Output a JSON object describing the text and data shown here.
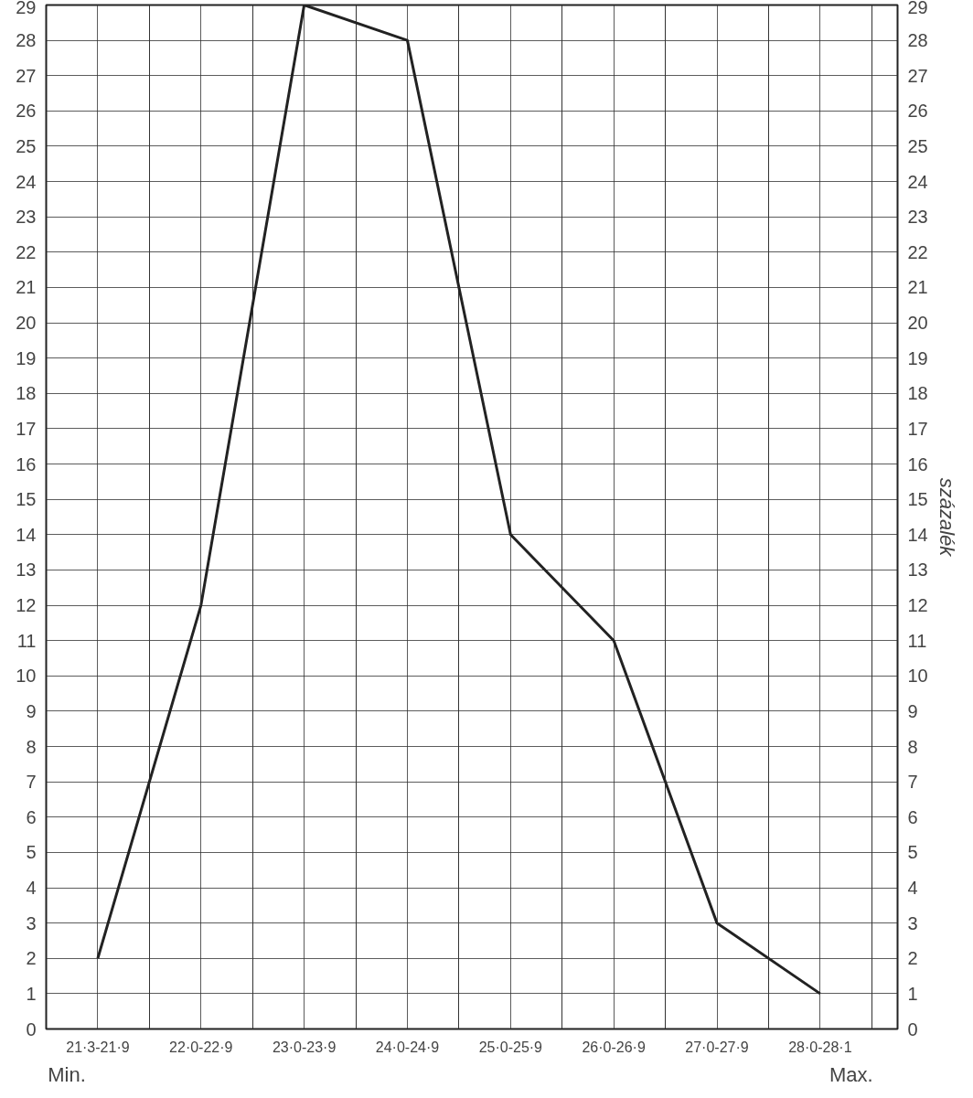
{
  "chart_data": {
    "type": "line",
    "categories": [
      "21·3-21·9",
      "22·0-22·9",
      "23·0-23·9",
      "24·0-24·9",
      "25·0-25·9",
      "26·0-26·9",
      "27·0-27·9",
      "28·0-28·1"
    ],
    "series": [
      {
        "color": "#222222",
        "values": [
          2,
          12,
          29,
          28,
          14,
          11,
          3,
          1
        ]
      }
    ],
    "ylim": [
      0,
      29
    ],
    "yticks": [
      0,
      1,
      2,
      3,
      4,
      5,
      6,
      7,
      8,
      9,
      10,
      11,
      12,
      13,
      14,
      15,
      16,
      17,
      18,
      19,
      20,
      21,
      22,
      23,
      24,
      25,
      26,
      27,
      28,
      29
    ],
    "y2lim": [
      0,
      29
    ],
    "y2ticks": [
      0,
      1,
      2,
      3,
      4,
      5,
      6,
      7,
      8,
      9,
      10,
      11,
      12,
      13,
      14,
      15,
      16,
      17,
      18,
      19,
      20,
      21,
      22,
      23,
      24,
      25,
      26,
      27,
      28,
      29
    ],
    "y2label": "százalék",
    "grid": true,
    "marker": "none",
    "line_style": "solid",
    "annotations": [
      "Min.",
      "Max."
    ]
  }
}
